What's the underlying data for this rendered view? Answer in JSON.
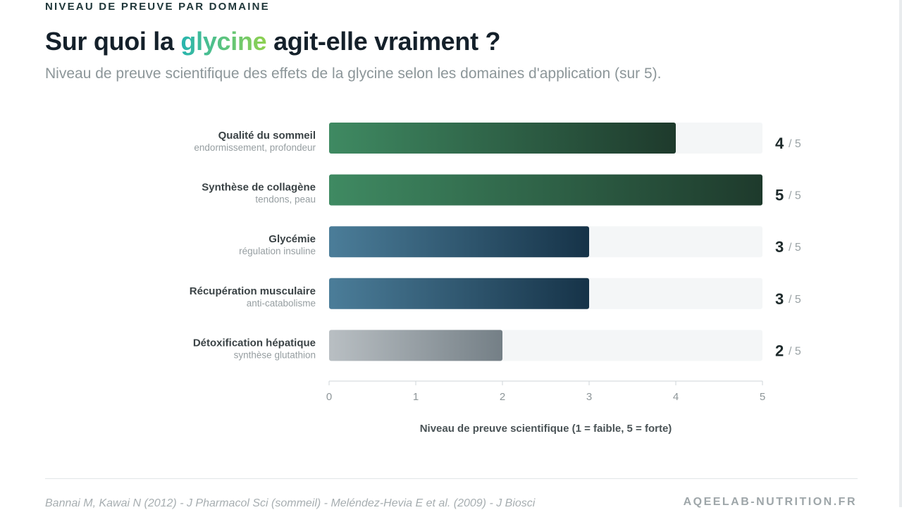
{
  "header": {
    "eyebrow": "NIVEAU DE PREUVE PAR DOMAINE",
    "title_before": "Sur quoi la ",
    "title_highlight": "glycine",
    "title_after": " agit-elle vraiment ?",
    "subtitle": "Niveau de preuve scientifique des effets de la glycine selon les domaines d'application (sur 5)."
  },
  "colors": {
    "highlight_start": "#27b5b0",
    "highlight_end": "#8fd14f",
    "green_start": "#3f8a62",
    "green_end": "#1e3a2c",
    "blue_start": "#4b7d99",
    "blue_end": "#163348",
    "gray_start": "#b9bfc3",
    "gray_end": "#747f86",
    "track": "#f4f6f7"
  },
  "chart_data": {
    "type": "bar",
    "orientation": "horizontal",
    "categories": [
      "Qualité du sommeil",
      "Synthèse de collagène",
      "Glycémie",
      "Récupération musculaire",
      "Détoxification hépatique"
    ],
    "sublabels": [
      "endormissement, profondeur",
      "tendons, peau",
      "régulation insuline",
      "anti-catabolisme",
      "synthèse glutathion"
    ],
    "values": [
      4,
      5,
      3,
      3,
      2
    ],
    "color_groups": [
      "green",
      "green",
      "blue",
      "blue",
      "gray"
    ],
    "value_suffix": "/ 5",
    "xlim": [
      0,
      5
    ],
    "xticks": [
      "0",
      "1",
      "2",
      "3",
      "4",
      "5"
    ],
    "xlabel": "Niveau de preuve scientifique (1 = faible, 5 = forte)",
    "grid": false
  },
  "footer": {
    "sources": "Bannai M, Kawai N (2012) - J Pharmacol Sci (sommeil) - Meléndez-Hevia E et al. (2009) - J Biosci",
    "brand": "AQEELAB-NUTRITION.FR"
  }
}
